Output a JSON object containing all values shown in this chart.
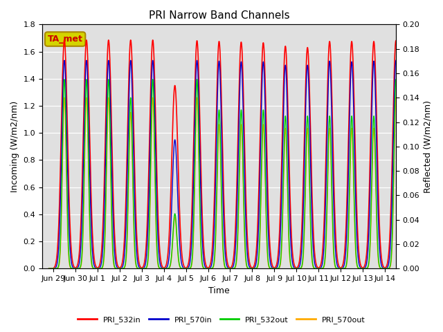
{
  "title": "PRI Narrow Band Channels",
  "xlabel": "Time",
  "ylabel_left": "Incoming (W/m2/nm)",
  "ylabel_right": "Reflected (W/m2/nm)",
  "ylim_left": [
    0.0,
    1.8
  ],
  "ylim_right": [
    0.0,
    0.2
  ],
  "yticks_left": [
    0.0,
    0.2,
    0.4,
    0.6,
    0.8,
    1.0,
    1.2,
    1.4,
    1.6,
    1.8
  ],
  "yticks_right": [
    0.0,
    0.02,
    0.04,
    0.06,
    0.08,
    0.1,
    0.12,
    0.14,
    0.16,
    0.18,
    0.2
  ],
  "colors": {
    "PRI_532in": "#ff0000",
    "PRI_570in": "#0000cc",
    "PRI_532out": "#00cc00",
    "PRI_570out": "#ffaa00"
  },
  "background_color": "#e0e0e0",
  "annotation_text": "TA_met",
  "annotation_facecolor": "#d4d400",
  "annotation_edgecolor": "#aa8800",
  "xtick_labels": [
    "Jun 29",
    "Jun 30",
    "Jul 1",
    "Jul 2",
    "Jul 3",
    "Jul 4",
    "Jul 5",
    "Jul 6",
    "Jul 7",
    "Jul 8",
    "Jul 9",
    "Jul 10",
    "Jul 11",
    "Jul 12",
    "Jul 13",
    "Jul 14"
  ],
  "peak_532in_base": 1.685,
  "peak_570in_base": 1.535,
  "peak_532out_base": 0.155,
  "peak_570out_base": 0.14,
  "sigma_532in": 0.14,
  "sigma_570in": 0.12,
  "sigma_532out": 0.09,
  "sigma_570out": 0.085,
  "total_days": 16,
  "anomaly_day": 5,
  "anomaly_532in": 1.35,
  "anomaly_570in_deep": 0.95,
  "anomaly_532out": 0.045,
  "anomaly_570out": 0.042,
  "lw_532in": 1.2,
  "lw_570in": 1.0,
  "lw_532out": 1.0,
  "lw_570out": 1.0,
  "title_fontsize": 11,
  "axis_fontsize": 8,
  "label_fontsize": 9
}
